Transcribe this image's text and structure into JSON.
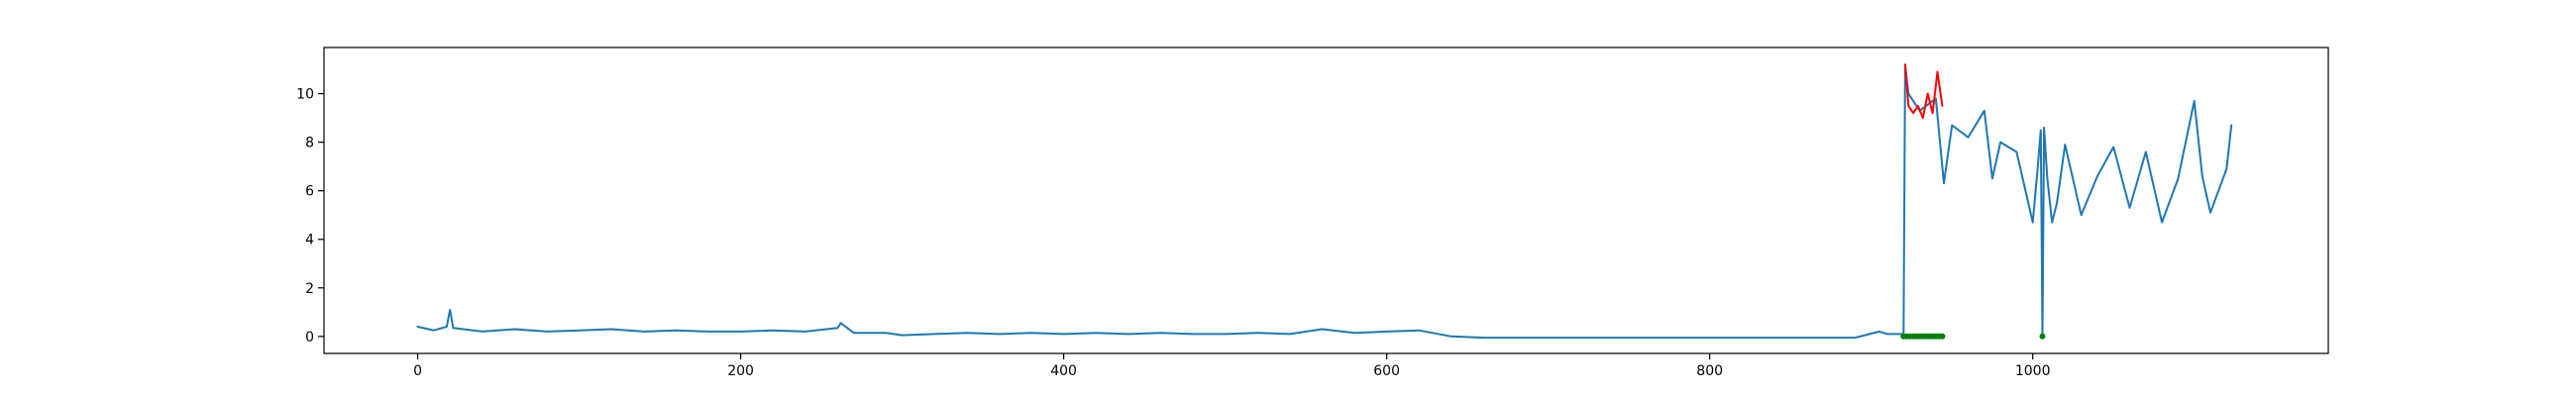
{
  "chart_data": {
    "type": "line",
    "title": "",
    "xlabel": "",
    "ylabel": "",
    "xlim": [
      -58,
      1183
    ],
    "ylim": [
      -0.7,
      11.9
    ],
    "xticks": [
      0,
      200,
      400,
      600,
      800,
      1000
    ],
    "yticks": [
      0,
      2,
      4,
      6,
      8,
      10
    ],
    "grid": false,
    "colors": {
      "series": "#1f77b4",
      "highlight": "#ff0000",
      "marker": "#008000"
    },
    "series": [
      {
        "style": "line",
        "color": "#1f77b4",
        "x": [
          0,
          10,
          18,
          20,
          22,
          40,
          60,
          80,
          100,
          120,
          140,
          160,
          180,
          200,
          220,
          240,
          260,
          262,
          270,
          290,
          300,
          320,
          340,
          360,
          380,
          400,
          420,
          440,
          460,
          480,
          500,
          520,
          540,
          560,
          580,
          600,
          620,
          640,
          660,
          700,
          750,
          800,
          850,
          890,
          905,
          910,
          920,
          921,
          923,
          930,
          940,
          945,
          950,
          960,
          970,
          975,
          980,
          990,
          1000,
          1003,
          1005,
          1006,
          1007,
          1009,
          1012,
          1015,
          1020,
          1030,
          1040,
          1050,
          1060,
          1070,
          1080,
          1090,
          1100,
          1105,
          1110,
          1120,
          1123
        ],
        "y": [
          0.4,
          0.25,
          0.4,
          1.1,
          0.35,
          0.2,
          0.3,
          0.2,
          0.25,
          0.3,
          0.2,
          0.25,
          0.2,
          0.2,
          0.25,
          0.2,
          0.35,
          0.55,
          0.15,
          0.15,
          0.05,
          0.1,
          0.15,
          0.1,
          0.15,
          0.1,
          0.15,
          0.1,
          0.15,
          0.1,
          0.1,
          0.15,
          0.1,
          0.3,
          0.15,
          0.2,
          0.25,
          0.0,
          -0.05,
          -0.05,
          -0.05,
          -0.05,
          -0.05,
          -0.05,
          0.2,
          0.1,
          0.1,
          11.2,
          10.0,
          9.3,
          9.8,
          6.3,
          8.7,
          8.2,
          9.3,
          6.5,
          8.0,
          7.6,
          4.7,
          6.9,
          8.5,
          0.0,
          8.6,
          6.5,
          4.7,
          5.5,
          7.9,
          5.0,
          6.6,
          7.8,
          5.3,
          7.6,
          4.7,
          6.5,
          9.7,
          6.6,
          5.1,
          6.9,
          8.7
        ]
      },
      {
        "style": "line",
        "color": "#ff0000",
        "x": [
          921,
          923,
          926,
          929,
          932,
          935,
          938,
          941,
          944
        ],
        "y": [
          11.2,
          9.5,
          9.2,
          9.5,
          9.0,
          10.0,
          9.2,
          10.9,
          9.5
        ]
      },
      {
        "style": "markers",
        "color": "#008000",
        "x": [
          920,
          922,
          924,
          926,
          928,
          930,
          932,
          934,
          936,
          938,
          940,
          942,
          944,
          1006
        ],
        "y": [
          0,
          0,
          0,
          0,
          0,
          0,
          0,
          0,
          0,
          0,
          0,
          0,
          0,
          0
        ]
      }
    ]
  }
}
